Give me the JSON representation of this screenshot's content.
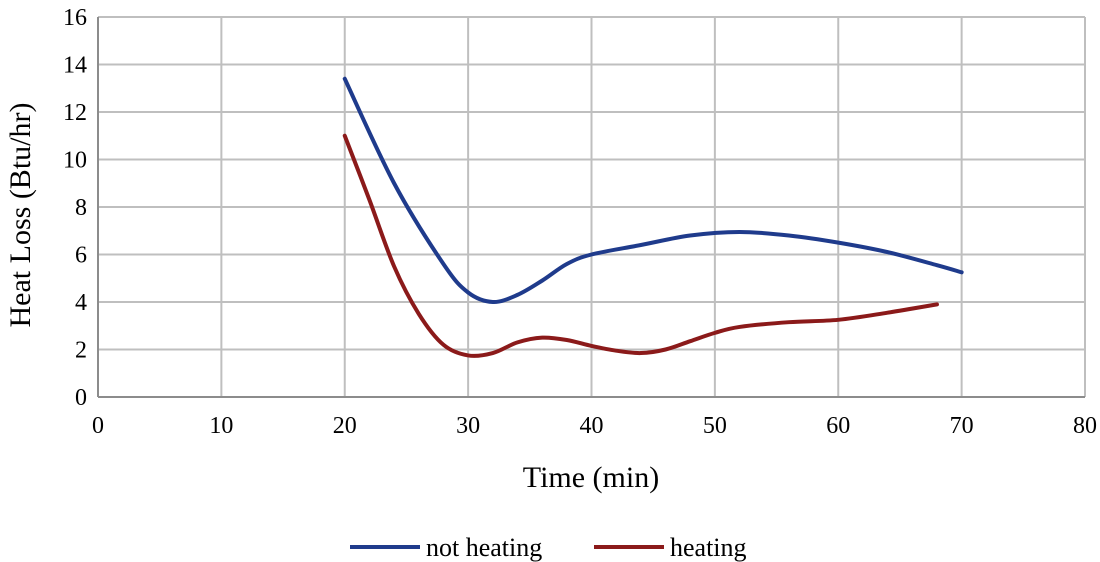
{
  "chart_data": {
    "type": "line",
    "title": "",
    "xlabel": "Time (min)",
    "ylabel": "Heat Loss (Btu/hr)",
    "xlim": [
      0,
      80
    ],
    "ylim": [
      0,
      16
    ],
    "xticks": [
      0,
      10,
      20,
      30,
      40,
      50,
      60,
      70,
      80
    ],
    "yticks": [
      0,
      2,
      4,
      6,
      8,
      10,
      12,
      14,
      16
    ],
    "grid": true,
    "legend_position": "bottom",
    "series": [
      {
        "name": "not heating",
        "color": "#1f3b8c",
        "x": [
          20,
          24,
          28,
          30,
          32,
          34,
          36,
          38,
          40,
          44,
          48,
          52,
          56,
          60,
          64,
          68,
          70
        ],
        "y": [
          13.4,
          9.0,
          5.6,
          4.4,
          4.0,
          4.3,
          4.9,
          5.6,
          6.0,
          6.4,
          6.8,
          6.95,
          6.8,
          6.5,
          6.1,
          5.55,
          5.25
        ]
      },
      {
        "name": "heating",
        "color": "#8b1a1a",
        "x": [
          20,
          22,
          24,
          26,
          28,
          30,
          32,
          34,
          36,
          38,
          40,
          42,
          44,
          46,
          48,
          50,
          52,
          56,
          60,
          64,
          68
        ],
        "y": [
          11.0,
          8.3,
          5.5,
          3.5,
          2.2,
          1.75,
          1.85,
          2.3,
          2.5,
          2.4,
          2.15,
          1.95,
          1.85,
          2.0,
          2.35,
          2.7,
          2.95,
          3.15,
          3.25,
          3.55,
          3.9
        ]
      }
    ]
  }
}
